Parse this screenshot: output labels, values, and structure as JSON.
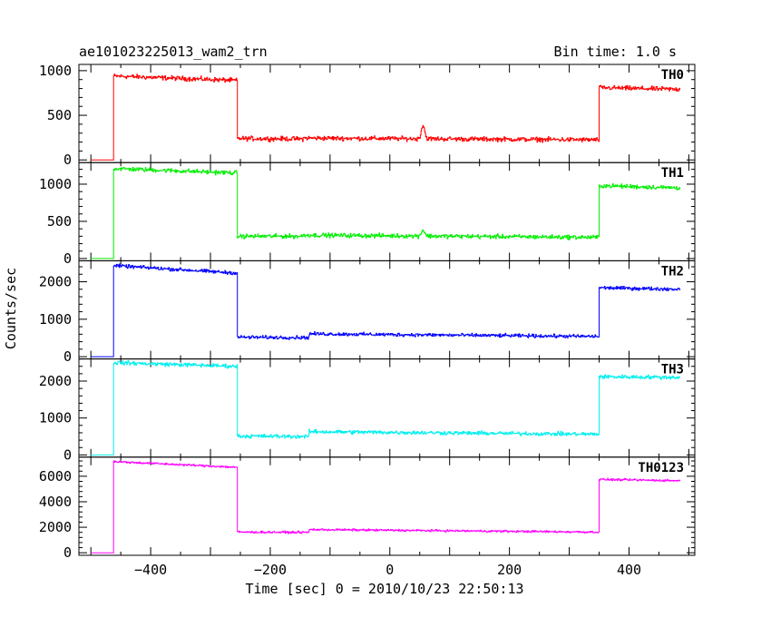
{
  "chart_data": {
    "type": "line",
    "title": "ae101023225013_wam2_trn",
    "bin_time_label": "Bin time: 1.0 s",
    "xlabel": "Time [sec] 0 = 2010/10/23 22:50:13",
    "ylabel": "Counts/sec",
    "xlim": [
      -520,
      510
    ],
    "x_ticks": [
      -400,
      -200,
      0,
      200,
      400
    ],
    "x_tick_labels": [
      "−400",
      "−200",
      "0",
      "200",
      "400"
    ],
    "x_start": -500,
    "x_end": 485,
    "panels": [
      {
        "name": "TH0",
        "color": "#ff0000",
        "ylim": [
          -30,
          1070
        ],
        "y_ticks": [
          0,
          500,
          1000
        ],
        "y_tick_labels": [
          "0",
          "500",
          "1000"
        ],
        "noise": 22,
        "segments": [
          {
            "x0": -500,
            "x1": -462,
            "y0": 0,
            "y1": 0
          },
          {
            "x0": -462,
            "x1": -255,
            "y0": 940,
            "y1": 890
          },
          {
            "x0": -255,
            "x1": -145,
            "y0": 240,
            "y1": 235
          },
          {
            "x0": -145,
            "x1": 350,
            "y0": 245,
            "y1": 225
          },
          {
            "x0": 350,
            "x1": 485,
            "y0": 810,
            "y1": 790
          }
        ],
        "features": [
          {
            "x": 55,
            "height": 150,
            "width": 4
          }
        ]
      },
      {
        "name": "TH1",
        "color": "#00ee00",
        "ylim": [
          -30,
          1290
        ],
        "y_ticks": [
          0,
          500,
          1000
        ],
        "y_tick_labels": [
          "0",
          "500",
          "1000"
        ],
        "noise": 25,
        "segments": [
          {
            "x0": -500,
            "x1": -462,
            "y0": 0,
            "y1": 0
          },
          {
            "x0": -462,
            "x1": -255,
            "y0": 1210,
            "y1": 1150
          },
          {
            "x0": -255,
            "x1": -145,
            "y0": 300,
            "y1": 300
          },
          {
            "x0": -145,
            "x1": 350,
            "y0": 315,
            "y1": 285
          },
          {
            "x0": 350,
            "x1": 485,
            "y0": 980,
            "y1": 950
          }
        ],
        "features": [
          {
            "x": 55,
            "height": 80,
            "width": 4
          }
        ]
      },
      {
        "name": "TH2",
        "color": "#0000ff",
        "ylim": [
          -60,
          2560
        ],
        "y_ticks": [
          0,
          1000,
          2000
        ],
        "y_tick_labels": [
          "0",
          "1000",
          "2000"
        ],
        "noise": 40,
        "segments": [
          {
            "x0": -500,
            "x1": -462,
            "y0": 0,
            "y1": 0
          },
          {
            "x0": -462,
            "x1": -255,
            "y0": 2430,
            "y1": 2230
          },
          {
            "x0": -255,
            "x1": -135,
            "y0": 520,
            "y1": 510
          },
          {
            "x0": -135,
            "x1": 350,
            "y0": 610,
            "y1": 540
          },
          {
            "x0": 350,
            "x1": 485,
            "y0": 1840,
            "y1": 1800
          }
        ],
        "features": []
      },
      {
        "name": "TH3",
        "color": "#00eeee",
        "ylim": [
          -60,
          2600
        ],
        "y_ticks": [
          0,
          1000,
          2000
        ],
        "y_tick_labels": [
          "0",
          "1000",
          "2000"
        ],
        "noise": 45,
        "segments": [
          {
            "x0": -500,
            "x1": -462,
            "y0": 0,
            "y1": 0
          },
          {
            "x0": -462,
            "x1": -255,
            "y0": 2500,
            "y1": 2400
          },
          {
            "x0": -255,
            "x1": -135,
            "y0": 510,
            "y1": 500
          },
          {
            "x0": -135,
            "x1": 350,
            "y0": 630,
            "y1": 560
          },
          {
            "x0": 350,
            "x1": 485,
            "y0": 2120,
            "y1": 2100
          }
        ],
        "features": []
      },
      {
        "name": "TH0123",
        "color": "#ff00ff",
        "ylim": [
          -200,
          7500
        ],
        "y_ticks": [
          0,
          2000,
          4000,
          6000
        ],
        "y_tick_labels": [
          "0",
          "2000",
          "4000",
          "6000"
        ],
        "noise": 70,
        "segments": [
          {
            "x0": -500,
            "x1": -462,
            "y0": 0,
            "y1": 0
          },
          {
            "x0": -462,
            "x1": -255,
            "y0": 7150,
            "y1": 6700
          },
          {
            "x0": -255,
            "x1": -135,
            "y0": 1620,
            "y1": 1600
          },
          {
            "x0": -135,
            "x1": 350,
            "y0": 1820,
            "y1": 1620
          },
          {
            "x0": 350,
            "x1": 485,
            "y0": 5750,
            "y1": 5650
          }
        ],
        "features": []
      }
    ]
  }
}
